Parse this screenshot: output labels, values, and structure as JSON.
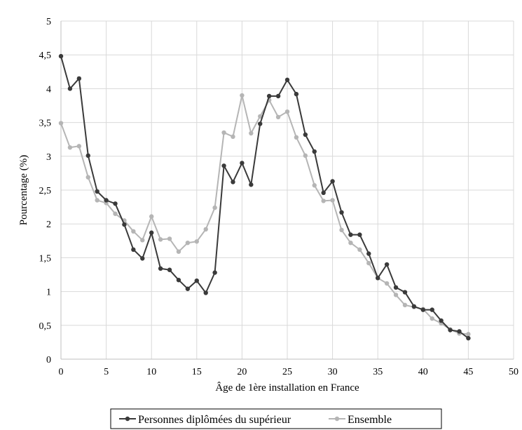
{
  "chart_data": {
    "type": "line",
    "title": "",
    "xlabel": "Âge de 1ère installation  en France",
    "ylabel": "Pourcentage (%)",
    "xlim": [
      0,
      50
    ],
    "ylim": [
      0,
      5
    ],
    "x_ticks": [
      "0",
      "5",
      "10",
      "15",
      "20",
      "25",
      "30",
      "35",
      "40",
      "45",
      "50"
    ],
    "y_ticks": [
      "0",
      "0,5",
      "1",
      "1,5",
      "2",
      "2,5",
      "3",
      "3,5",
      "4",
      "4,5",
      "5"
    ],
    "grid": true,
    "legend_position": "bottom",
    "x": [
      0,
      1,
      2,
      3,
      4,
      5,
      6,
      7,
      8,
      9,
      10,
      11,
      12,
      13,
      14,
      15,
      16,
      17,
      18,
      19,
      20,
      21,
      22,
      23,
      24,
      25,
      26,
      27,
      28,
      29,
      30,
      31,
      32,
      33,
      34,
      35,
      36,
      37,
      38,
      39,
      40,
      41,
      42,
      43,
      44,
      45
    ],
    "series": [
      {
        "name": "Personnes diplômées du supérieur",
        "color": "#3a3a3a",
        "values": [
          4.48,
          4.0,
          4.15,
          3.01,
          2.48,
          2.35,
          2.3,
          1.99,
          1.62,
          1.49,
          1.87,
          1.34,
          1.32,
          1.17,
          1.04,
          1.16,
          0.98,
          1.28,
          2.86,
          2.62,
          2.9,
          2.58,
          3.48,
          3.89,
          3.89,
          4.13,
          3.92,
          3.32,
          3.07,
          2.46,
          2.63,
          2.17,
          1.84,
          1.84,
          1.56,
          1.2,
          1.4,
          1.06,
          0.99,
          0.78,
          0.73,
          0.73,
          0.57,
          0.43,
          0.41,
          0.31
        ]
      },
      {
        "name": "Ensemble",
        "color": "#b5b5b5",
        "values": [
          3.49,
          3.13,
          3.15,
          2.69,
          2.35,
          2.31,
          2.15,
          2.05,
          1.89,
          1.76,
          2.11,
          1.77,
          1.78,
          1.59,
          1.72,
          1.74,
          1.92,
          2.24,
          3.35,
          3.29,
          3.9,
          3.34,
          3.59,
          3.83,
          3.58,
          3.66,
          3.28,
          3.01,
          2.57,
          2.34,
          2.35,
          1.91,
          1.72,
          1.62,
          1.42,
          1.2,
          1.12,
          0.95,
          0.8,
          0.77,
          0.74,
          0.6,
          0.53,
          0.44,
          0.38,
          0.37
        ]
      }
    ]
  }
}
